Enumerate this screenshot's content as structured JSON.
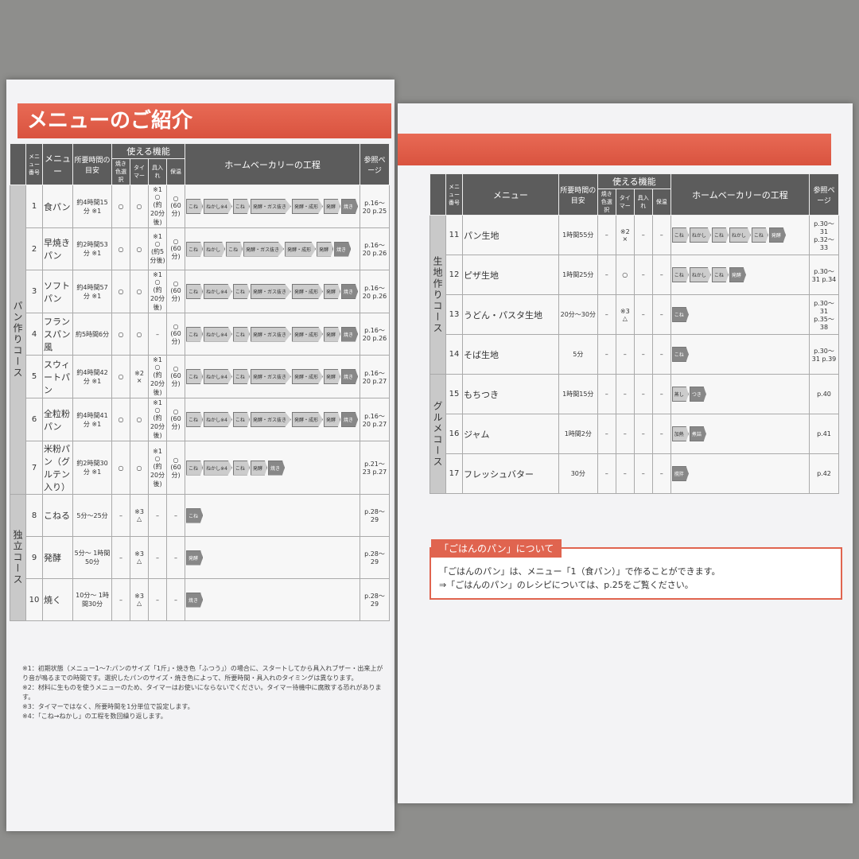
{
  "left": {
    "title": "メニューのご紹介",
    "headers": {
      "no": "メニュー番号",
      "menu": "メニュー",
      "time": "所要時間の目安",
      "functions": "使える機能",
      "color": "焼き色選択",
      "timer": "タイマー",
      "add": "具入れ",
      "keep": "保温",
      "process": "ホームベーカリーの工程",
      "ref": "参照ページ"
    },
    "groups": [
      {
        "label": "パン作りコース",
        "rows": [
          {
            "no": "1",
            "menu": "食パン",
            "time": "約4時間15分 ※1",
            "color": "○",
            "timer": "○",
            "add": "※1 ○ (約20分後)",
            "keep": "○ (60分)",
            "steps": [
              "こね",
              "ねかし※4",
              "こね",
              "発酵・ガス抜き",
              "発酵・成形",
              "発酵",
              "焼き"
            ],
            "ref": "p.16〜20 p.25"
          },
          {
            "no": "2",
            "menu": "早焼きパン",
            "time": "約2時間53分 ※1",
            "color": "○",
            "timer": "○",
            "add": "※1 ○ (約5分後)",
            "keep": "○ (60分)",
            "steps": [
              "こね",
              "ねかし",
              "こね",
              "発酵・ガス抜き",
              "発酵・成形",
              "発酵",
              "焼き"
            ],
            "ref": "p.16〜20 p.26"
          },
          {
            "no": "3",
            "menu": "ソフトパン",
            "time": "約4時間57分 ※1",
            "color": "○",
            "timer": "○",
            "add": "※1 ○ (約20分後)",
            "keep": "○ (60分)",
            "steps": [
              "こね",
              "ねかし※4",
              "こね",
              "発酵・ガス抜き",
              "発酵・成形",
              "発酵",
              "焼き"
            ],
            "ref": "p.16〜20 p.26"
          },
          {
            "no": "4",
            "menu": "フランスパン風",
            "time": "約5時間6分",
            "color": "○",
            "timer": "○",
            "add": "–",
            "keep": "○ (60分)",
            "steps": [
              "こね",
              "ねかし※4",
              "こね",
              "発酵・ガス抜き",
              "発酵・成形",
              "発酵",
              "焼き"
            ],
            "ref": "p.16〜20 p.26"
          },
          {
            "no": "5",
            "menu": "スウィートパン",
            "time": "約4時間42分 ※1",
            "color": "○",
            "timer": "※2 ×",
            "add": "※1 ○ (約20分後)",
            "keep": "○ (60分)",
            "steps": [
              "こね",
              "ねかし※4",
              "こね",
              "発酵・ガス抜き",
              "発酵・成形",
              "発酵",
              "焼き"
            ],
            "ref": "p.16〜20 p.27"
          },
          {
            "no": "6",
            "menu": "全粒粉パン",
            "time": "約4時間41分 ※1",
            "color": "○",
            "timer": "○",
            "add": "※1 ○ (約20分後)",
            "keep": "○ (60分)",
            "steps": [
              "こね",
              "ねかし※4",
              "こね",
              "発酵・ガス抜き",
              "発酵・成形",
              "発酵",
              "焼き"
            ],
            "ref": "p.16〜20 p.27"
          },
          {
            "no": "7",
            "menu": "米粉パン（グルテン入り）",
            "time": "約2時間30分 ※1",
            "color": "○",
            "timer": "○",
            "add": "※1 ○ (約20分後)",
            "keep": "○ (60分)",
            "steps": [
              "こね",
              "ねかし※4",
              "こね",
              "発酵",
              "焼き"
            ],
            "ref": "p.21〜23 p.27"
          }
        ]
      },
      {
        "label": "独立コース",
        "rows": [
          {
            "no": "8",
            "menu": "こねる",
            "time": "5分〜25分",
            "color": "–",
            "timer": "※3 △",
            "add": "–",
            "keep": "–",
            "steps": [
              "こね"
            ],
            "ref": "p.28〜29"
          },
          {
            "no": "9",
            "menu": "発酵",
            "time": "5分〜 1時間50分",
            "color": "–",
            "timer": "※3 △",
            "add": "–",
            "keep": "–",
            "steps": [
              "発酵"
            ],
            "ref": "p.28〜29"
          },
          {
            "no": "10",
            "menu": "焼く",
            "time": "10分〜 1時間30分",
            "color": "–",
            "timer": "※3 △",
            "add": "–",
            "keep": "–",
            "steps": [
              "焼き"
            ],
            "ref": "p.28〜29"
          }
        ]
      }
    ],
    "notes": [
      "※1：初期状態（メニュー1〜7:パンのサイズ「1斤」・焼き色「ふつう」）の場合に、スタートしてから具入れブザー・出来上がり音が鳴るまでの時間です。選択したパンのサイズ・焼き色によって、所要時間・具入れのタイミングは異なります。",
      "※2：材料に生ものを使うメニューのため、タイマーはお使いにならないでください。タイマー待機中に腐敗する恐れがあります。",
      "※3：タイマーではなく、所要時間を1分単位で設定します。",
      "※4：「こね→ねかし」の工程を数回繰り返します。"
    ]
  },
  "right": {
    "headers": {
      "no": "メニュー番号",
      "menu": "メニュー",
      "time": "所要時間の目安",
      "functions": "使える機能",
      "color": "焼き色選択",
      "timer": "タイマー",
      "add": "具入れ",
      "keep": "保温",
      "process": "ホームベーカリーの工程",
      "ref": "参照ページ"
    },
    "groups": [
      {
        "label": "生地作りコース",
        "rows": [
          {
            "no": "11",
            "menu": "パン生地",
            "time": "1時間55分",
            "color": "–",
            "timer": "※2 ×",
            "add": "–",
            "keep": "–",
            "steps": [
              "こね",
              "ねかし",
              "こね",
              "ねかし",
              "こね",
              "発酵"
            ],
            "ref": "p.30〜31 p.32〜33"
          },
          {
            "no": "12",
            "menu": "ピザ生地",
            "time": "1時間25分",
            "color": "–",
            "timer": "○",
            "add": "–",
            "keep": "–",
            "steps": [
              "こね",
              "ねかし",
              "こね",
              "発酵"
            ],
            "ref": "p.30〜31 p.34"
          },
          {
            "no": "13",
            "menu": "うどん・パスタ生地",
            "time": "20分〜30分",
            "color": "–",
            "timer": "※3 △",
            "add": "–",
            "keep": "–",
            "steps": [
              "こね"
            ],
            "ref": "p.30〜31 p.35〜38"
          },
          {
            "no": "14",
            "menu": "そば生地",
            "time": "5分",
            "color": "–",
            "timer": "–",
            "add": "–",
            "keep": "–",
            "steps": [
              "こね"
            ],
            "ref": "p.30〜31 p.39"
          }
        ]
      },
      {
        "label": "グルメコース",
        "rows": [
          {
            "no": "15",
            "menu": "もちつき",
            "time": "1時間15分",
            "color": "–",
            "timer": "–",
            "add": "–",
            "keep": "–",
            "steps": [
              "蒸し",
              "つき"
            ],
            "ref": "p.40"
          },
          {
            "no": "16",
            "menu": "ジャム",
            "time": "1時間2分",
            "color": "–",
            "timer": "–",
            "add": "–",
            "keep": "–",
            "steps": [
              "加熱",
              "煮詰"
            ],
            "ref": "p.41"
          },
          {
            "no": "17",
            "menu": "フレッシュバター",
            "time": "30分",
            "color": "–",
            "timer": "–",
            "add": "–",
            "keep": "–",
            "steps": [
              "撹拌"
            ],
            "ref": "p.42"
          }
        ]
      }
    ],
    "info": {
      "title": "「ごはんのパン」について",
      "lines": [
        "「ごはんのパン」は、メニュー「1（食パン）」で作ることができます。",
        "⇒「ごはんのパン」のレシピについては、p.25をご覧ください。"
      ]
    }
  }
}
